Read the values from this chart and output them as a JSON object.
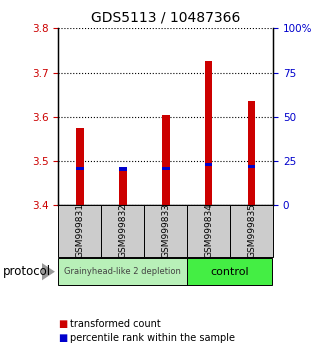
{
  "title": "GDS5113 / 10487366",
  "samples": [
    "GSM999831",
    "GSM999832",
    "GSM999833",
    "GSM999834",
    "GSM999835"
  ],
  "groups": [
    "depletion",
    "depletion",
    "depletion",
    "control",
    "control"
  ],
  "transformed_counts": [
    3.575,
    3.487,
    3.605,
    3.727,
    3.635
  ],
  "percentile_values": [
    3.484,
    3.482,
    3.484,
    3.492,
    3.487
  ],
  "ylim": [
    3.4,
    3.8
  ],
  "yticks_left": [
    3.4,
    3.5,
    3.6,
    3.7,
    3.8
  ],
  "yticks_right": [
    0,
    25,
    50,
    75,
    100
  ],
  "yticks_right_labels": [
    "0",
    "25",
    "50",
    "75",
    "100%"
  ],
  "left_color": "#cc0000",
  "right_color": "#0000cc",
  "bar_color_red": "#cc0000",
  "bar_color_blue": "#0000cc",
  "bar_width": 0.18,
  "grp1_color": "#b8f0b8",
  "grp2_color": "#44ee44",
  "grp1_label": "Grainyhead-like 2 depletion",
  "grp2_label": "control",
  "legend_red_label": "transformed count",
  "legend_blue_label": "percentile rank within the sample",
  "protocol_label": "protocol"
}
